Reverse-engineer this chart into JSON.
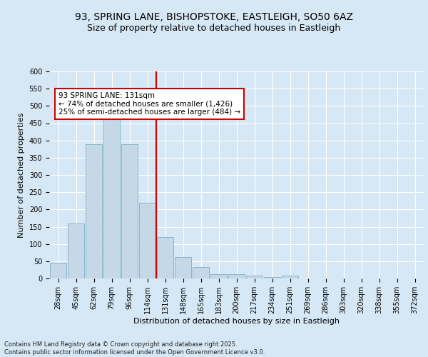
{
  "title_line1": "93, SPRING LANE, BISHOPSTOKE, EASTLEIGH, SO50 6AZ",
  "title_line2": "Size of property relative to detached houses in Eastleigh",
  "xlabel": "Distribution of detached houses by size in Eastleigh",
  "ylabel": "Number of detached properties",
  "categories": [
    "28sqm",
    "45sqm",
    "62sqm",
    "79sqm",
    "96sqm",
    "114sqm",
    "131sqm",
    "148sqm",
    "165sqm",
    "183sqm",
    "200sqm",
    "217sqm",
    "234sqm",
    "251sqm",
    "269sqm",
    "286sqm",
    "303sqm",
    "320sqm",
    "338sqm",
    "355sqm",
    "372sqm"
  ],
  "bar_heights": [
    45,
    160,
    390,
    463,
    388,
    220,
    120,
    63,
    33,
    13,
    13,
    8,
    5,
    8,
    0,
    0,
    0,
    0,
    0,
    0,
    0
  ],
  "bar_color": "#c5d8e8",
  "bar_edge_color": "#8ab4cc",
  "vline_color": "#cc0000",
  "annotation_text": "93 SPRING LANE: 131sqm\n← 74% of detached houses are smaller (1,426)\n25% of semi-detached houses are larger (484) →",
  "annotation_box_color": "#ffffff",
  "annotation_box_edge": "#cc0000",
  "ylim": [
    0,
    600
  ],
  "yticks": [
    0,
    50,
    100,
    150,
    200,
    250,
    300,
    350,
    400,
    450,
    500,
    550,
    600
  ],
  "background_color": "#d6e8f5",
  "plot_bg_color": "#d6e8f5",
  "footer_text": "Contains HM Land Registry data © Crown copyright and database right 2025.\nContains public sector information licensed under the Open Government Licence v3.0.",
  "title_fontsize": 10,
  "subtitle_fontsize": 9,
  "axis_label_fontsize": 8,
  "tick_fontsize": 7,
  "annotation_fontsize": 7.5,
  "footer_fontsize": 6
}
